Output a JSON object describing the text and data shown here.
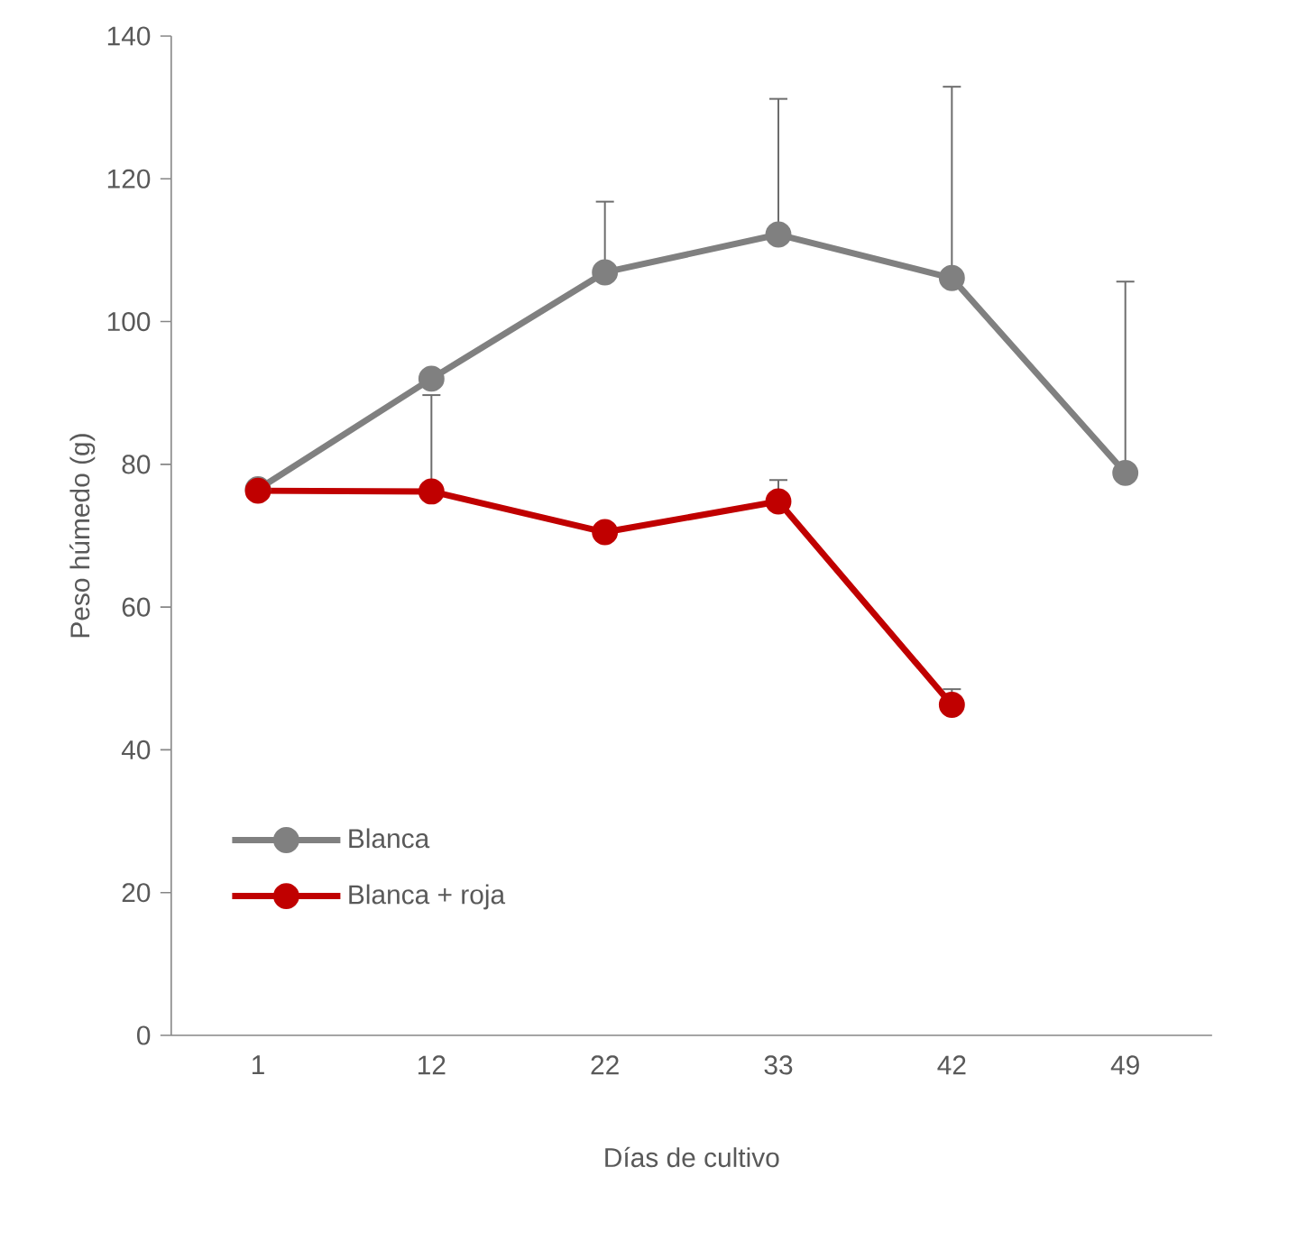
{
  "chart_data": {
    "type": "line",
    "xlabel": "Días de cultivo",
    "ylabel": "Peso húmedo (g)",
    "categories": [
      "1",
      "12",
      "22",
      "33",
      "42",
      "49"
    ],
    "series": [
      {
        "name": "Blanca",
        "color": "#808080",
        "values": [
          76.5,
          92,
          106.9,
          112.2,
          106.1,
          78.8
        ],
        "errors": [
          null,
          null,
          [
            106.9,
            116.8
          ],
          [
            112.2,
            131.2
          ],
          [
            106.1,
            132.9
          ],
          [
            78.8,
            105.6
          ]
        ]
      },
      {
        "name": "Blanca + roja",
        "color": "#c00000",
        "values": [
          76.3,
          76.2,
          70.5,
          74.8,
          46.3,
          null
        ],
        "errors": [
          null,
          [
            76.2,
            89.7
          ],
          null,
          [
            74.8,
            77.8
          ],
          [
            46.3,
            48.5
          ],
          null
        ]
      }
    ],
    "ylim": [
      0,
      140
    ],
    "yticks": [
      0,
      20,
      40,
      60,
      80,
      100,
      120,
      140
    ],
    "grid": false,
    "legend": "bottom left",
    "marker": "circle",
    "line_style": "solid"
  }
}
